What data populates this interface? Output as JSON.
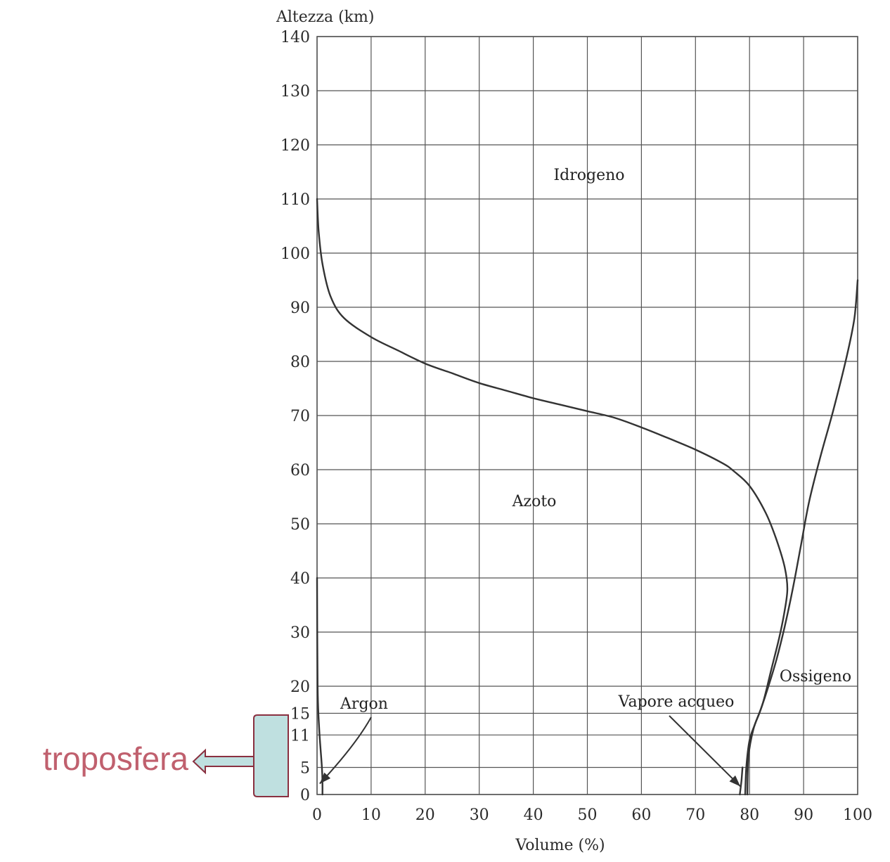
{
  "chart_data": {
    "type": "line",
    "ylabel": "Altezza (km)",
    "xlabel": "Volume (%)",
    "xlim": [
      0,
      100
    ],
    "ylim": [
      0,
      140
    ],
    "x_ticks": [
      0,
      10,
      20,
      30,
      40,
      50,
      60,
      70,
      80,
      90,
      100
    ],
    "y_ticks": [
      {
        "value": 0,
        "label": "0"
      },
      {
        "value": 5,
        "label": "5"
      },
      {
        "value": 11,
        "label": "11"
      },
      {
        "value": 15,
        "label": "15"
      },
      {
        "value": 20,
        "label": "20"
      },
      {
        "value": 30,
        "label": "30"
      },
      {
        "value": 40,
        "label": "40"
      },
      {
        "value": 50,
        "label": "50"
      },
      {
        "value": 60,
        "label": "60"
      },
      {
        "value": 70,
        "label": "70"
      },
      {
        "value": 80,
        "label": "80"
      },
      {
        "value": 90,
        "label": "90"
      },
      {
        "value": 100,
        "label": "100"
      },
      {
        "value": 110,
        "label": "110"
      },
      {
        "value": 120,
        "label": "120"
      },
      {
        "value": 130,
        "label": "130"
      },
      {
        "value": 140,
        "label": "140"
      }
    ],
    "series": [
      {
        "name": "Azoto / Idrogeno boundary",
        "points": [
          [
            0,
            110
          ],
          [
            0.3,
            104
          ],
          [
            1,
            98
          ],
          [
            2.5,
            92
          ],
          [
            5,
            88
          ],
          [
            10,
            84.5
          ],
          [
            15,
            82
          ],
          [
            20,
            79.6
          ],
          [
            25,
            77.8
          ],
          [
            30,
            76
          ],
          [
            35,
            74.6
          ],
          [
            40,
            73.2
          ],
          [
            45,
            72
          ],
          [
            50,
            70.8
          ],
          [
            55,
            69.6
          ],
          [
            60,
            67.8
          ],
          [
            65,
            65.8
          ],
          [
            70,
            63.7
          ],
          [
            75,
            61.2
          ],
          [
            77,
            59.8
          ],
          [
            80,
            57
          ],
          [
            83,
            52
          ],
          [
            85,
            47
          ],
          [
            86.5,
            42
          ],
          [
            87,
            38
          ],
          [
            86.5,
            34
          ],
          [
            85.5,
            29
          ],
          [
            84,
            23
          ],
          [
            82.5,
            17
          ],
          [
            81,
            13
          ],
          [
            80,
            10
          ],
          [
            79.4,
            5
          ],
          [
            79.2,
            0
          ]
        ]
      },
      {
        "name": "Ossigeno boundary",
        "points": [
          [
            100,
            95
          ],
          [
            99.4,
            88
          ],
          [
            98,
            81
          ],
          [
            95.5,
            71
          ],
          [
            93,
            62
          ],
          [
            91,
            54
          ],
          [
            89.5,
            46
          ],
          [
            88,
            38
          ],
          [
            86.5,
            31
          ],
          [
            85,
            25
          ],
          [
            83.5,
            20
          ],
          [
            82,
            15.5
          ],
          [
            80.7,
            12
          ],
          [
            79.8,
            7
          ],
          [
            79.6,
            0
          ]
        ]
      },
      {
        "name": "Vapore acqueo boundary",
        "points": [
          [
            78.7,
            5
          ],
          [
            78.5,
            2.5
          ],
          [
            78.2,
            0
          ]
        ]
      },
      {
        "name": "Argon boundary",
        "points": [
          [
            0,
            40
          ],
          [
            0.1,
            20
          ],
          [
            0.4,
            12
          ],
          [
            0.9,
            5
          ],
          [
            1,
            2
          ],
          [
            1,
            0
          ]
        ]
      }
    ],
    "region_labels": [
      "Idrogeno",
      "Azoto",
      "Ossigeno"
    ],
    "annotations": [
      {
        "text": "Argon",
        "points_to": [
          0.5,
          2
        ]
      },
      {
        "text": "Vapore acqueo",
        "points_to": [
          78.3,
          1.5
        ]
      }
    ],
    "side_label": {
      "text": "troposfera",
      "range": [
        0,
        15
      ]
    }
  },
  "colors": {
    "grid": "#555555",
    "curve": "#333333",
    "tropo_text": "#c0606e",
    "tropo_fill": "#bfe0e0",
    "tropo_border": "#8a3040"
  }
}
